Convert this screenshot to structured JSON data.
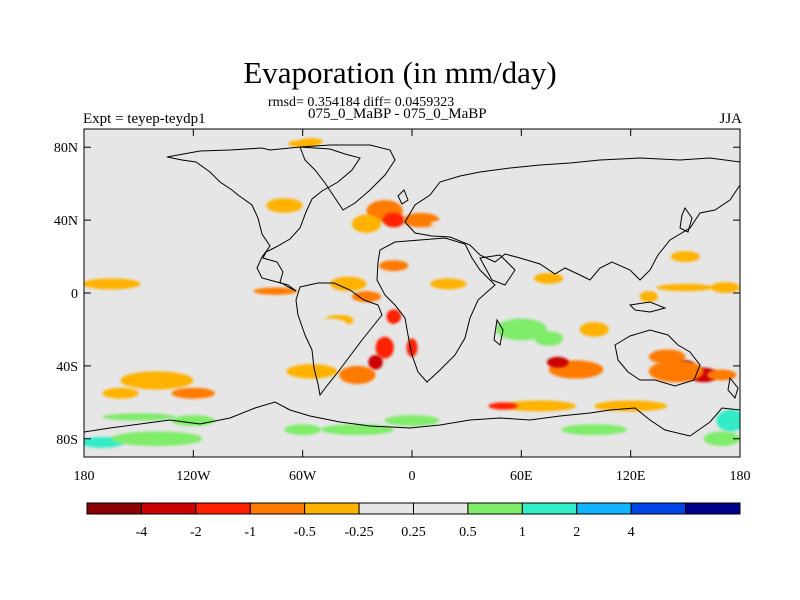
{
  "header": {
    "title": "Evaporation (in mm/day)",
    "stats": "rmsd= 0.354184  diff= 0.0459323",
    "subtitle": "075_0_MaBP - 075_0_MaBP",
    "experiment": "Expt = teyep-teydp1",
    "season": "JJA"
  },
  "chart_data": {
    "type": "heatmap",
    "title": "Evaporation (in mm/day)",
    "projection": "cylindrical-equidistant",
    "xlim": [
      -180,
      180
    ],
    "ylim": [
      -90,
      90
    ],
    "x_ticks": [
      {
        "value": -180,
        "label": "180"
      },
      {
        "value": -120,
        "label": "120W"
      },
      {
        "value": -60,
        "label": "60W"
      },
      {
        "value": 0,
        "label": "0"
      },
      {
        "value": 60,
        "label": "60E"
      },
      {
        "value": 120,
        "label": "120E"
      },
      {
        "value": 180,
        "label": "180"
      }
    ],
    "y_ticks": [
      {
        "value": 80,
        "label": "80N"
      },
      {
        "value": 40,
        "label": "40N"
      },
      {
        "value": 0,
        "label": "0"
      },
      {
        "value": -40,
        "label": "40S"
      },
      {
        "value": -80,
        "label": "80S"
      }
    ],
    "colorbar": {
      "colors": [
        "#8b0000",
        "#cc0000",
        "#ff2000",
        "#ff7a00",
        "#ffb200",
        "#e6e6e6",
        "#e6e6e6",
        "#7fec6a",
        "#33ecc8",
        "#12b4ff",
        "#0045e6",
        "#000088"
      ],
      "labels": [
        "-4",
        "-2",
        "-1",
        "-0.5",
        "-0.25",
        "0.25",
        "0.5",
        "1",
        "2",
        "4"
      ]
    },
    "anomaly_regions": [
      {
        "lon": -160,
        "lat": 55,
        "rx": 14,
        "ry": 4,
        "level": 0.35
      },
      {
        "lon": -120,
        "lat": 45,
        "rx": 14,
        "ry": 5,
        "level": 0.4
      },
      {
        "lon": -92,
        "lat": 35,
        "rx": 8,
        "ry": 4,
        "level": 0.35
      },
      {
        "lon": -70,
        "lat": 48,
        "rx": 10,
        "ry": 4,
        "level": -0.4
      },
      {
        "lon": -55,
        "lat": 83,
        "rx": 6,
        "ry": 2,
        "level": -0.4
      },
      {
        "lon": -72,
        "lat": 68,
        "rx": 6,
        "ry": 3,
        "level": 0.3
      },
      {
        "lon": -40,
        "lat": 78,
        "rx": 6,
        "ry": 2,
        "level": 0.3
      },
      {
        "lon": -15,
        "lat": 45,
        "rx": 10,
        "ry": 6,
        "level": -0.7
      },
      {
        "lon": -25,
        "lat": 38,
        "rx": 8,
        "ry": 5,
        "level": -0.35
      },
      {
        "lon": -10,
        "lat": 40,
        "rx": 6,
        "ry": 4,
        "level": -1.5
      },
      {
        "lon": 5,
        "lat": 40,
        "rx": 10,
        "ry": 4,
        "level": -0.6
      },
      {
        "lon": 10,
        "lat": 48,
        "rx": 6,
        "ry": 3,
        "level": 0.4
      },
      {
        "lon": 35,
        "lat": 38,
        "rx": 25,
        "ry": 3,
        "level": 0.35
      },
      {
        "lon": 60,
        "lat": 68,
        "rx": 14,
        "ry": 3,
        "level": 0.4
      },
      {
        "lon": 90,
        "lat": 65,
        "rx": 10,
        "ry": 3,
        "level": 0.35
      },
      {
        "lon": 150,
        "lat": 58,
        "rx": 14,
        "ry": 5,
        "level": 0.4
      },
      {
        "lon": 140,
        "lat": 43,
        "rx": 16,
        "ry": 4,
        "level": 0.3
      },
      {
        "lon": 150,
        "lat": 40,
        "rx": 12,
        "ry": 3,
        "level": 0.35
      },
      {
        "lon": -60,
        "lat": 82,
        "rx": 8,
        "ry": 2,
        "level": -0.35
      },
      {
        "lon": 150,
        "lat": 20,
        "rx": 8,
        "ry": 3,
        "level": -0.35
      },
      {
        "lon": 125,
        "lat": 28,
        "rx": 10,
        "ry": 3,
        "level": 0.3
      },
      {
        "lon": -165,
        "lat": 5,
        "rx": 16,
        "ry": 3,
        "level": -0.35
      },
      {
        "lon": -120,
        "lat": 2,
        "rx": 24,
        "ry": 3,
        "level": 0.35
      },
      {
        "lon": -75,
        "lat": 1,
        "rx": 12,
        "ry": 2,
        "level": -0.6
      },
      {
        "lon": -35,
        "lat": 5,
        "rx": 10,
        "ry": 4,
        "level": -0.4
      },
      {
        "lon": -25,
        "lat": -2,
        "rx": 8,
        "ry": 3,
        "level": -0.6
      },
      {
        "lon": -40,
        "lat": -15,
        "rx": 8,
        "ry": 3,
        "level": -0.5
      },
      {
        "lon": -10,
        "lat": -13,
        "rx": 4,
        "ry": 4,
        "level": -1.3
      },
      {
        "lon": -5,
        "lat": -22,
        "rx": 6,
        "ry": 6,
        "level": 0.45
      },
      {
        "lon": 0,
        "lat": -30,
        "rx": 3,
        "ry": 5,
        "level": -1.2
      },
      {
        "lon": -15,
        "lat": -30,
        "rx": 5,
        "ry": 6,
        "level": -1.3
      },
      {
        "lon": -20,
        "lat": -38,
        "rx": 4,
        "ry": 4,
        "level": -2.2
      },
      {
        "lon": -45,
        "lat": -18,
        "rx": 10,
        "ry": 4,
        "level": 0.4
      },
      {
        "lon": -95,
        "lat": -20,
        "rx": 20,
        "ry": 4,
        "level": 0.35
      },
      {
        "lon": -85,
        "lat": -45,
        "rx": 28,
        "ry": 6,
        "level": 0.4
      },
      {
        "lon": -55,
        "lat": -43,
        "rx": 14,
        "ry": 4,
        "level": -0.4
      },
      {
        "lon": -30,
        "lat": -45,
        "rx": 10,
        "ry": 5,
        "level": -0.6
      },
      {
        "lon": 60,
        "lat": -20,
        "rx": 14,
        "ry": 6,
        "level": 0.5
      },
      {
        "lon": 75,
        "lat": -25,
        "rx": 8,
        "ry": 4,
        "level": 0.6
      },
      {
        "lon": 110,
        "lat": -10,
        "rx": 18,
        "ry": 4,
        "level": 0.35
      },
      {
        "lon": 100,
        "lat": -20,
        "rx": 8,
        "ry": 4,
        "level": -0.4
      },
      {
        "lon": 90,
        "lat": -42,
        "rx": 15,
        "ry": 5,
        "level": -0.6
      },
      {
        "lon": 80,
        "lat": -38,
        "rx": 6,
        "ry": 3,
        "level": -2.2
      },
      {
        "lon": 140,
        "lat": -35,
        "rx": 10,
        "ry": 4,
        "level": -1.0
      },
      {
        "lon": 150,
        "lat": -40,
        "rx": 5,
        "ry": 3,
        "level": -4.5
      },
      {
        "lon": 160,
        "lat": -45,
        "rx": 8,
        "ry": 4,
        "level": -2.5
      },
      {
        "lon": 145,
        "lat": -43,
        "rx": 15,
        "ry": 6,
        "level": -0.8
      },
      {
        "lon": 170,
        "lat": -45,
        "rx": 8,
        "ry": 3,
        "level": -0.6
      },
      {
        "lon": 170,
        "lat": -55,
        "rx": 10,
        "ry": 3,
        "level": 0.35
      },
      {
        "lon": 165,
        "lat": -30,
        "rx": 8,
        "ry": 3,
        "level": 0.35
      },
      {
        "lon": 128,
        "lat": 5,
        "rx": 8,
        "ry": 3,
        "level": 0.35
      },
      {
        "lon": 130,
        "lat": -2,
        "rx": 5,
        "ry": 3,
        "level": -0.4
      },
      {
        "lon": 172,
        "lat": 3,
        "rx": 8,
        "ry": 3,
        "level": -0.35
      },
      {
        "lon": -140,
        "lat": -48,
        "rx": 20,
        "ry": 5,
        "level": -0.4
      },
      {
        "lon": -120,
        "lat": -55,
        "rx": 12,
        "ry": 3,
        "level": -0.6
      },
      {
        "lon": -160,
        "lat": -55,
        "rx": 10,
        "ry": 3,
        "level": -0.4
      },
      {
        "lon": -170,
        "lat": -73,
        "rx": 10,
        "ry": 3,
        "level": 0.4
      },
      {
        "lon": -150,
        "lat": -68,
        "rx": 20,
        "ry": 2,
        "level": 0.6
      },
      {
        "lon": -120,
        "lat": -70,
        "rx": 12,
        "ry": 3,
        "level": 0.5
      },
      {
        "lon": -100,
        "lat": -65,
        "rx": 12,
        "ry": 3,
        "level": 0.4
      },
      {
        "lon": -170,
        "lat": -82,
        "rx": 12,
        "ry": 3,
        "level": 1.0
      },
      {
        "lon": -140,
        "lat": -80,
        "rx": 25,
        "ry": 4,
        "level": 0.5
      },
      {
        "lon": -80,
        "lat": -72,
        "rx": 15,
        "ry": 3,
        "level": 0.4
      },
      {
        "lon": -60,
        "lat": -75,
        "rx": 10,
        "ry": 3,
        "level": 0.5
      },
      {
        "lon": -30,
        "lat": -75,
        "rx": 20,
        "ry": 3,
        "level": 0.5
      },
      {
        "lon": 0,
        "lat": -70,
        "rx": 15,
        "ry": 3,
        "level": 0.5
      },
      {
        "lon": 40,
        "lat": -70,
        "rx": 15,
        "ry": 3,
        "level": 0.4
      },
      {
        "lon": 70,
        "lat": -62,
        "rx": 20,
        "ry": 3,
        "level": -0.45
      },
      {
        "lon": 50,
        "lat": -62,
        "rx": 8,
        "ry": 2,
        "level": -1.2
      },
      {
        "lon": 120,
        "lat": -62,
        "rx": 20,
        "ry": 3,
        "level": -0.4
      },
      {
        "lon": 100,
        "lat": -75,
        "rx": 18,
        "ry": 3,
        "level": 0.5
      },
      {
        "lon": 150,
        "lat": -75,
        "rx": 15,
        "ry": 3,
        "level": 0.45
      },
      {
        "lon": 175,
        "lat": -70,
        "rx": 8,
        "ry": 6,
        "level": 1.2
      },
      {
        "lon": 170,
        "lat": -80,
        "rx": 10,
        "ry": 4,
        "level": 0.7
      },
      {
        "lon": -10,
        "lat": 15,
        "rx": 8,
        "ry": 3,
        "level": -0.6
      },
      {
        "lon": 20,
        "lat": 5,
        "rx": 10,
        "ry": 3,
        "level": -0.4
      },
      {
        "lon": 40,
        "lat": -5,
        "rx": 8,
        "ry": 4,
        "level": 0.4
      },
      {
        "lon": 60,
        "lat": 12,
        "rx": 10,
        "ry": 3,
        "level": 0.35
      },
      {
        "lon": 75,
        "lat": 8,
        "rx": 8,
        "ry": 3,
        "level": -0.4
      },
      {
        "lon": 100,
        "lat": 10,
        "rx": 10,
        "ry": 3,
        "level": 0.35
      },
      {
        "lon": 150,
        "lat": 3,
        "rx": 16,
        "ry": 2,
        "level": -0.3
      }
    ]
  }
}
